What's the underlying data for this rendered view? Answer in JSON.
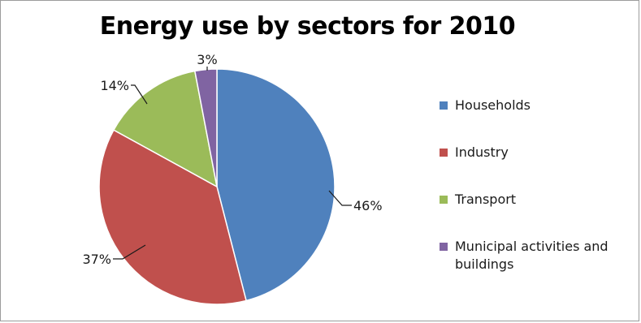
{
  "chart_data": {
    "type": "pie",
    "title": "Energy use by sectors for 2010",
    "slices": [
      {
        "label": "Households",
        "value": 46,
        "display": "46%",
        "color": "#4f81bd"
      },
      {
        "label": "Industry",
        "value": 37,
        "display": "37%",
        "color": "#c0504d"
      },
      {
        "label": "Transport",
        "value": 14,
        "display": "14%",
        "color": "#9bbb59"
      },
      {
        "label": "Municipal activities and buildings",
        "value": 3,
        "display": "3%",
        "color": "#8064a2"
      }
    ],
    "start_angle": "12 o'clock, clockwise",
    "legend_position": "right",
    "data_labels": "outside with leader lines"
  }
}
